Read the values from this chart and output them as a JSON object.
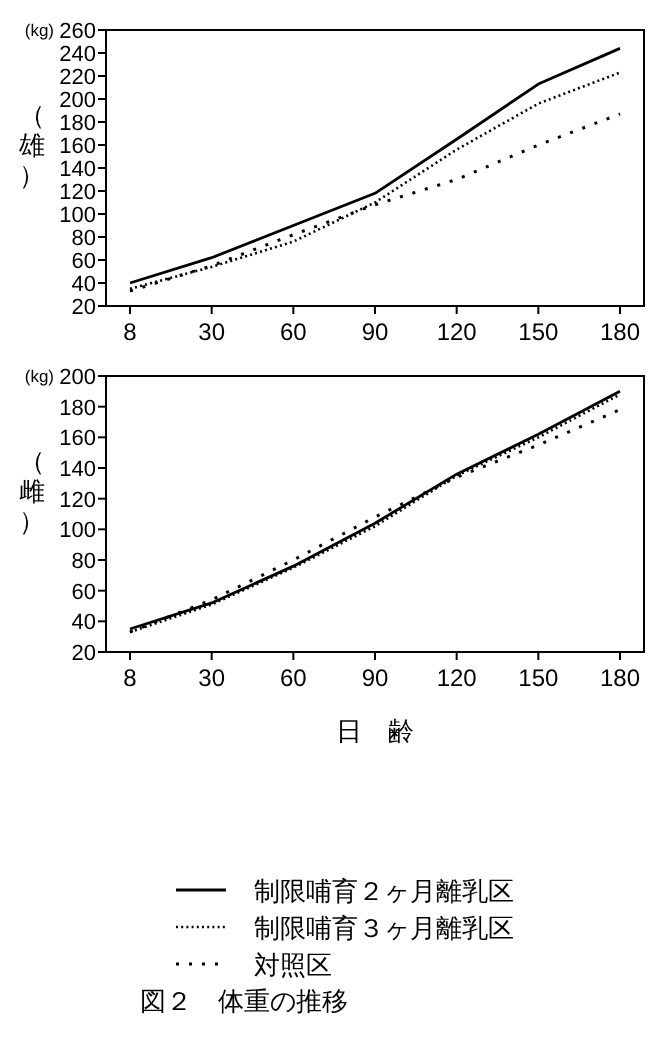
{
  "chart_data": [
    {
      "type": "line",
      "ylabel": "（雄）",
      "annotations": [
        "(kg)"
      ],
      "categories": [
        "8",
        "30",
        "60",
        "90",
        "120",
        "150",
        "180"
      ],
      "ylim": [
        20,
        260
      ],
      "yticks": [
        20,
        40,
        60,
        80,
        100,
        120,
        140,
        160,
        180,
        200,
        220,
        240,
        260
      ],
      "grid": false,
      "legend": false,
      "marker": "none",
      "series": [
        {
          "color": "#000000",
          "line_style": "solid",
          "values": [
            40,
            62,
            90,
            118,
            165,
            213,
            244
          ]
        },
        {
          "color": "#000000",
          "line_style": "dotted",
          "values": [
            35,
            54,
            76,
            110,
            156,
            196,
            223
          ]
        },
        {
          "color": "#000000",
          "line_style": "dashed",
          "values": [
            33,
            55,
            82,
            108,
            130,
            160,
            187
          ]
        }
      ]
    },
    {
      "type": "line",
      "ylabel": "（雌）",
      "xlabel": "日　齢",
      "annotations": [
        "(kg)",
        "図２　体重の推移"
      ],
      "categories": [
        "8",
        "30",
        "60",
        "90",
        "120",
        "150",
        "180"
      ],
      "ylim": [
        20,
        200
      ],
      "yticks": [
        20,
        40,
        60,
        80,
        100,
        120,
        140,
        160,
        180,
        200
      ],
      "grid": false,
      "legend": "bottom",
      "marker": "none",
      "series": [
        {
          "name": "制限哺育２ヶ月離乳区",
          "color": "#000000",
          "line_style": "solid",
          "values": [
            35,
            52,
            76,
            104,
            136,
            162,
            190
          ]
        },
        {
          "name": "制限哺育３ヶ月離乳区",
          "color": "#000000",
          "line_style": "dotted",
          "values": [
            33,
            51,
            75,
            102,
            135,
            160,
            188
          ]
        },
        {
          "name": "対照区",
          "color": "#000000",
          "line_style": "dashed",
          "values": [
            33,
            54,
            80,
            108,
            134,
            155,
            178
          ]
        }
      ]
    }
  ]
}
